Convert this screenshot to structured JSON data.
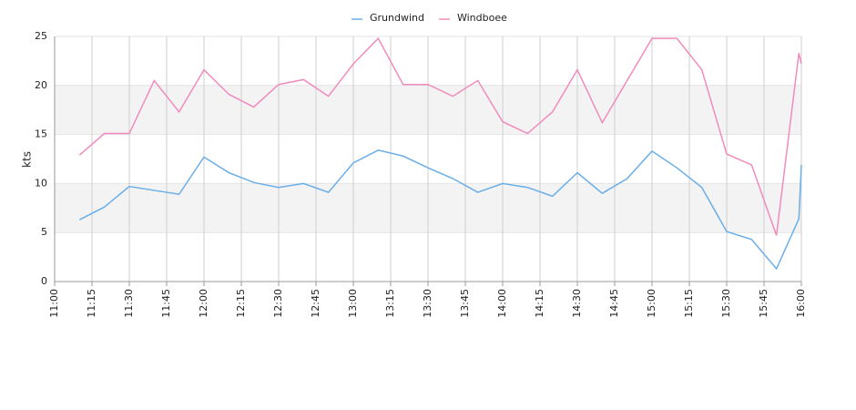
{
  "chart_data": {
    "type": "line",
    "ylabel": "kts",
    "x": [
      "11:10",
      "11:20",
      "11:30",
      "11:40",
      "11:50",
      "12:00",
      "12:10",
      "12:20",
      "12:30",
      "12:40",
      "12:50",
      "13:00",
      "13:10",
      "13:20",
      "13:30",
      "13:40",
      "13:50",
      "14:00",
      "14:10",
      "14:20",
      "14:30",
      "14:40",
      "14:50",
      "15:00",
      "15:10",
      "15:20",
      "15:30",
      "15:40",
      "15:50",
      "15:59",
      "16:00"
    ],
    "series": [
      {
        "name": "Grundwind",
        "color": "#6aaee8",
        "values": [
          6.3,
          7.6,
          9.7,
          9.3,
          8.9,
          12.7,
          11.1,
          10.1,
          9.6,
          10.0,
          9.1,
          12.1,
          13.4,
          12.8,
          11.6,
          10.5,
          9.1,
          10.0,
          9.6,
          8.7,
          11.1,
          9.0,
          10.5,
          13.3,
          11.6,
          9.6,
          5.1,
          4.3,
          1.3,
          6.4,
          11.9
        ]
      },
      {
        "name": "Windboee",
        "color": "#f08cbc",
        "values": [
          12.9,
          15.1,
          15.1,
          20.5,
          17.3,
          21.6,
          19.1,
          17.8,
          20.1,
          20.6,
          18.9,
          22.2,
          24.8,
          20.1,
          20.1,
          18.9,
          20.5,
          16.3,
          15.1,
          17.3,
          21.6,
          16.2,
          20.5,
          24.8,
          24.8,
          21.6,
          13.0,
          11.9,
          4.7,
          23.3,
          22.2
        ]
      }
    ],
    "xlim": [
      "11:00",
      "16:00"
    ],
    "xticks": [
      "11:00",
      "11:15",
      "11:30",
      "11:45",
      "12:00",
      "12:15",
      "12:30",
      "12:45",
      "13:00",
      "13:15",
      "13:30",
      "13:45",
      "14:00",
      "14:15",
      "14:30",
      "14:45",
      "15:00",
      "15:15",
      "15:30",
      "15:45",
      "16:00"
    ],
    "ylim": [
      0,
      25
    ],
    "yticks": [
      0,
      5,
      10,
      15,
      20,
      25
    ],
    "grid": true,
    "bands": true,
    "legend": "top"
  }
}
